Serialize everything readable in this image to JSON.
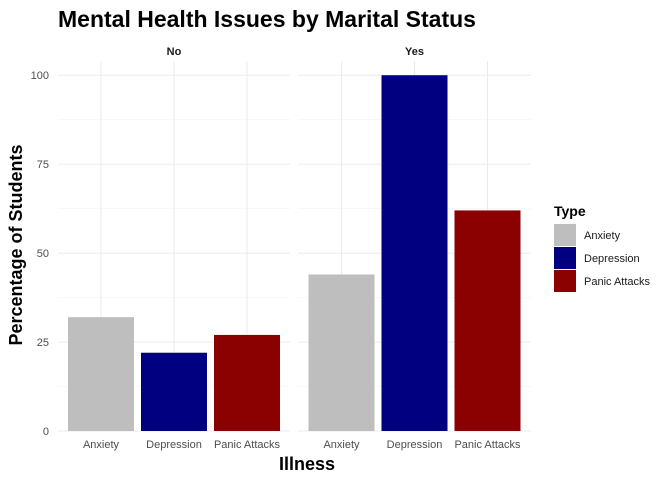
{
  "chart_data": {
    "type": "bar",
    "title": "Mental Health Issues by Marital Status",
    "xlabel": "Illness",
    "ylabel": "Percentage of Students",
    "ylim": [
      0,
      104
    ],
    "yticks": [
      0,
      25,
      50,
      75,
      100
    ],
    "grid": true,
    "categories": [
      "Anxiety",
      "Depression",
      "Panic Attacks"
    ],
    "facets": [
      {
        "label": "No",
        "values": [
          32,
          22,
          27
        ]
      },
      {
        "label": "Yes",
        "values": [
          44,
          100,
          62
        ]
      }
    ],
    "legend": {
      "title": "Type",
      "placement": "right",
      "entries": [
        "Anxiety",
        "Depression",
        "Panic Attacks"
      ]
    },
    "colors": {
      "Anxiety": "#bebebe",
      "Depression": "#000080",
      "Panic Attacks": "#8b0000"
    }
  }
}
